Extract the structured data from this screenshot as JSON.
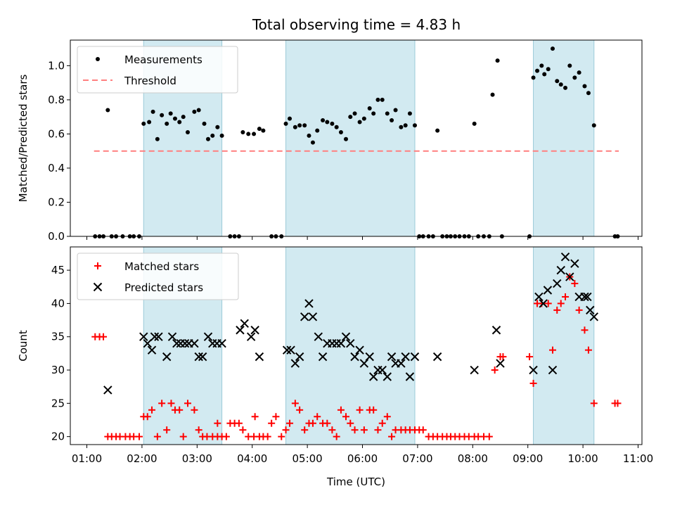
{
  "title": "Total observing time = 4.83 h",
  "colors": {
    "band": "#add8e6",
    "measurement": "#000000",
    "threshold": "#ff7f7f",
    "matched": "#ff0000",
    "predicted": "#000000"
  },
  "chart_data": [
    {
      "type": "scatter",
      "ylabel": "Matched/Predicted stars",
      "xlabel": "",
      "ylim": [
        0,
        1.15
      ],
      "yticks": [
        "0.0",
        "0.2",
        "0.4",
        "0.6",
        "0.8",
        "1.0"
      ],
      "shaded_bands_hours": [
        [
          2.03,
          3.45
        ],
        [
          4.61,
          6.95
        ],
        [
          9.1,
          10.2
        ]
      ],
      "legend_position": "top-left",
      "series": [
        {
          "name": "Measurements",
          "marker": "dot",
          "x": [
            1.15,
            1.23,
            1.3,
            1.45,
            1.53,
            1.65,
            1.78,
            1.85,
            1.95,
            2.03,
            2.13,
            2.2,
            2.28,
            2.36,
            2.45,
            2.52,
            2.6,
            2.68,
            2.75,
            2.83,
            2.95,
            3.03,
            3.13,
            3.2,
            3.28,
            3.37,
            3.45,
            3.6,
            3.68,
            3.76,
            3.83,
            3.93,
            4.03,
            4.13,
            4.2,
            4.35,
            4.43,
            4.53,
            4.61,
            4.68,
            4.78,
            4.86,
            4.95,
            5.03,
            5.1,
            5.18,
            5.28,
            5.36,
            5.45,
            5.53,
            5.61,
            5.7,
            5.78,
            5.86,
            5.95,
            6.03,
            6.13,
            6.2,
            6.28,
            6.36,
            6.45,
            6.53,
            6.6,
            6.7,
            6.78,
            6.86,
            6.95,
            7.03,
            7.1,
            7.2,
            7.28,
            7.36,
            7.45,
            7.53,
            7.6,
            7.68,
            7.76,
            7.85,
            7.93,
            8.03,
            8.1,
            8.2,
            8.3,
            8.36,
            8.45,
            8.53,
            9.03,
            9.1,
            9.17,
            9.25,
            9.3,
            9.37,
            9.45,
            9.53,
            9.6,
            9.68,
            9.76,
            9.85,
            9.93,
            10.03,
            10.1,
            10.2,
            10.58,
            10.63,
            1.38
          ],
          "y": [
            0,
            0,
            0,
            0,
            0,
            0,
            0,
            0,
            0,
            0.66,
            0.67,
            0.73,
            0.57,
            0.71,
            0.66,
            0.72,
            0.69,
            0.67,
            0.7,
            0.61,
            0.73,
            0.74,
            0.66,
            0.57,
            0.59,
            0.64,
            0.59,
            0,
            0,
            0,
            0.61,
            0.6,
            0.6,
            0.63,
            0.62,
            0,
            0,
            0,
            0.66,
            0.69,
            0.64,
            0.65,
            0.65,
            0.59,
            0.55,
            0.62,
            0.68,
            0.67,
            0.66,
            0.64,
            0.61,
            0.57,
            0.7,
            0.72,
            0.67,
            0.69,
            0.75,
            0.72,
            0.8,
            0.8,
            0.72,
            0.68,
            0.74,
            0.64,
            0.65,
            0.72,
            0.65,
            0,
            0,
            0,
            0,
            0.62,
            0,
            0,
            0,
            0,
            0,
            0,
            0,
            0.66,
            0,
            0,
            0,
            0.83,
            1.03,
            0,
            0,
            0.93,
            0.97,
            1.0,
            0.95,
            0.98,
            1.1,
            0.91,
            0.89,
            0.87,
            1.0,
            0.93,
            0.96,
            0.88,
            0.84,
            0.65,
            0,
            0,
            0.74
          ]
        },
        {
          "name": "Threshold",
          "line": "dashed",
          "x": [
            1.13,
            10.65
          ],
          "y": [
            0.5,
            0.5
          ]
        }
      ]
    },
    {
      "type": "scatter",
      "ylabel": "Count",
      "xlabel": "Time (UTC)",
      "ylim": [
        18.8,
        48.5
      ],
      "yticks": [
        "20",
        "25",
        "30",
        "35",
        "40",
        "45"
      ],
      "xlim": [
        0.7,
        11.07
      ],
      "xticks": [
        "01:00",
        "02:00",
        "03:00",
        "04:00",
        "05:00",
        "06:00",
        "07:00",
        "08:00",
        "09:00",
        "10:00",
        "11:00"
      ],
      "shaded_bands_hours": [
        [
          2.03,
          3.45
        ],
        [
          4.61,
          6.95
        ],
        [
          9.1,
          10.2
        ]
      ],
      "legend_position": "top-left",
      "series": [
        {
          "name": "Matched stars",
          "marker": "plus",
          "x": [
            1.15,
            1.23,
            1.3,
            1.38,
            1.45,
            1.53,
            1.6,
            1.7,
            1.78,
            1.85,
            1.95,
            2.03,
            2.1,
            2.18,
            2.28,
            2.36,
            2.45,
            2.53,
            2.6,
            2.68,
            2.75,
            2.83,
            2.95,
            3.03,
            3.1,
            3.18,
            3.28,
            3.37,
            3.45,
            3.53,
            3.6,
            3.68,
            3.76,
            3.83,
            3.93,
            4.03,
            4.13,
            4.2,
            4.28,
            4.35,
            4.43,
            4.53,
            4.61,
            4.68,
            4.78,
            4.86,
            4.95,
            5.03,
            5.1,
            5.18,
            5.28,
            5.36,
            5.45,
            5.53,
            5.61,
            5.7,
            5.78,
            5.86,
            5.95,
            6.03,
            6.13,
            6.2,
            6.28,
            6.36,
            6.45,
            6.53,
            6.6,
            6.7,
            6.78,
            6.86,
            6.95,
            7.03,
            7.1,
            7.2,
            7.28,
            7.36,
            7.45,
            7.53,
            7.6,
            7.68,
            7.76,
            7.85,
            7.93,
            8.03,
            8.1,
            8.2,
            8.3,
            8.4,
            8.5,
            8.55,
            9.03,
            9.1,
            9.17,
            9.25,
            9.37,
            9.45,
            9.53,
            9.6,
            9.68,
            9.76,
            9.85,
            9.93,
            10.03,
            10.1,
            10.2,
            10.58,
            10.63,
            3.37,
            4.05
          ],
          "y": [
            35,
            35,
            35,
            20,
            20,
            20,
            20,
            20,
            20,
            20,
            20,
            23,
            23,
            24,
            20,
            25,
            21,
            25,
            24,
            24,
            20,
            25,
            24,
            21,
            20,
            20,
            20,
            20,
            20,
            20,
            22,
            22,
            22,
            21,
            20,
            20,
            20,
            20,
            20,
            22,
            23,
            20,
            21,
            22,
            25,
            24,
            21,
            22,
            22,
            23,
            22,
            22,
            21,
            20,
            24,
            23,
            22,
            21,
            24,
            21,
            24,
            24,
            21,
            22,
            23,
            20,
            21,
            21,
            21,
            21,
            21,
            21,
            21,
            20,
            20,
            20,
            20,
            20,
            20,
            20,
            20,
            20,
            20,
            20,
            20,
            20,
            20,
            30,
            32,
            32,
            32,
            28,
            40,
            40,
            40,
            33,
            39,
            40,
            41,
            44,
            43,
            39,
            36,
            33,
            25,
            25,
            25,
            22,
            23
          ],
          "_comment": ""
        },
        {
          "name": "Predicted stars",
          "marker": "x",
          "x": [
            1.38,
            2.03,
            2.1,
            2.18,
            2.23,
            2.3,
            2.45,
            2.55,
            2.63,
            2.7,
            2.78,
            2.85,
            2.95,
            3.03,
            3.1,
            3.2,
            3.28,
            3.36,
            3.45,
            3.78,
            3.86,
            3.98,
            4.05,
            4.13,
            4.63,
            4.7,
            4.78,
            4.86,
            4.95,
            5.03,
            5.1,
            5.2,
            5.28,
            5.36,
            5.45,
            5.53,
            5.61,
            5.7,
            5.78,
            5.86,
            5.95,
            6.03,
            6.13,
            6.2,
            6.28,
            6.36,
            6.45,
            6.53,
            6.6,
            6.7,
            6.78,
            6.86,
            6.95,
            7.36,
            8.03,
            8.43,
            8.5,
            9.1,
            9.2,
            9.28,
            9.36,
            9.45,
            9.53,
            9.6,
            9.68,
            9.76,
            9.85,
            9.93,
            10.03,
            10.13,
            10.2,
            10.08
          ],
          "y": [
            27,
            35,
            34,
            33,
            35,
            35,
            32,
            35,
            34,
            34,
            34,
            34,
            34,
            32,
            32,
            35,
            34,
            34,
            34,
            36,
            37,
            35,
            36,
            32,
            33,
            33,
            31,
            32,
            38,
            40,
            38,
            35,
            32,
            34,
            34,
            34,
            34,
            35,
            34,
            32,
            33,
            31,
            32,
            29,
            30,
            30,
            29,
            32,
            31,
            31,
            32,
            29,
            32,
            32,
            30,
            36,
            31,
            30,
            41,
            40,
            42,
            30,
            43,
            45,
            47,
            44,
            46,
            41,
            41,
            39,
            38,
            41
          ]
        }
      ]
    }
  ]
}
